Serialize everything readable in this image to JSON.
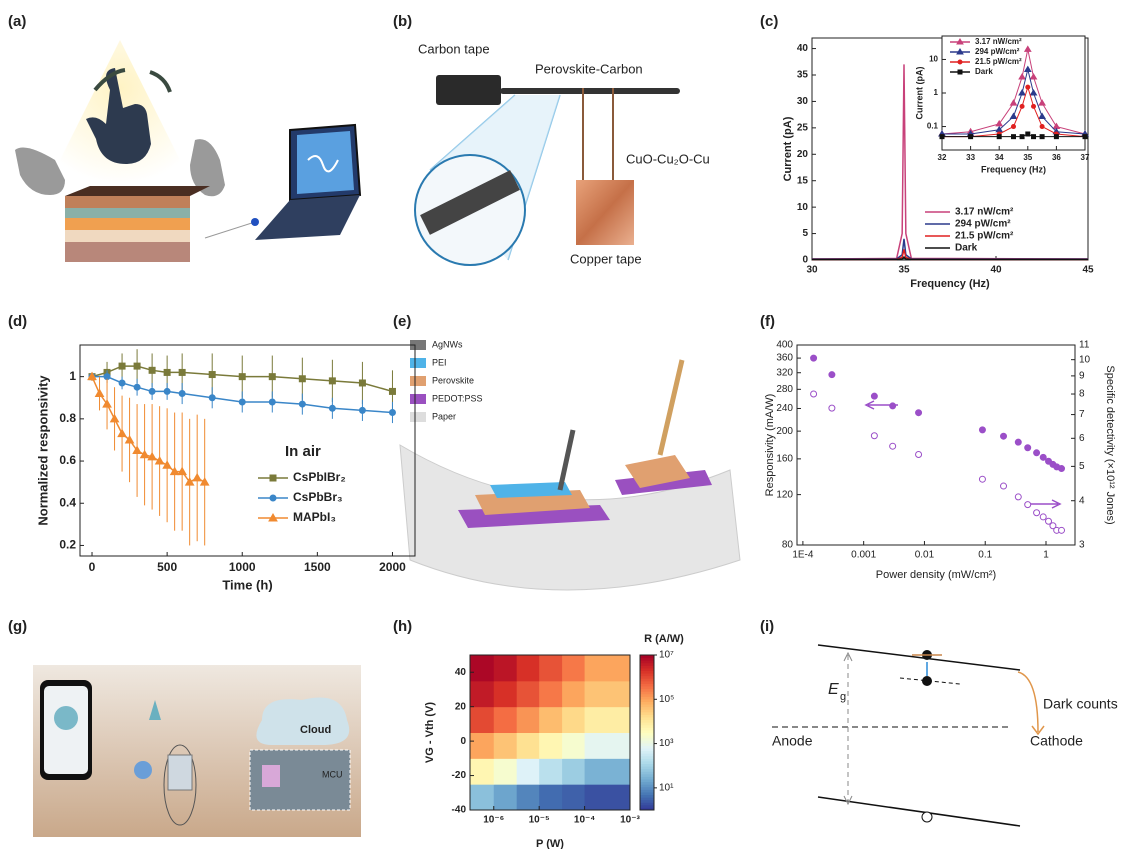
{
  "panel_labels": [
    "(a)",
    "(b)",
    "(c)",
    "(d)",
    "(e)",
    "(f)",
    "(g)",
    "(h)",
    "(i)"
  ],
  "b": [
    "Carbon tape",
    "Perovskite-Carbon",
    "CuO-Cu₂O-Cu",
    "Copper tape"
  ],
  "e": [
    "AgNWs",
    "PEI",
    "Perovskite",
    "PEDOT:PSS",
    "Paper"
  ],
  "g": [
    "Cloud",
    "MCU"
  ],
  "i": [
    "E",
    "g",
    "Dark counts",
    "Anode",
    "Cathode"
  ],
  "chart_data": [
    {
      "type": "line",
      "x_label": "Frequency (Hz)",
      "y_label": "Current (pA)",
      "xlim": [
        30,
        45
      ],
      "xticks": [
        30,
        35,
        40,
        45
      ],
      "ylim": [
        0,
        42
      ],
      "yticks": [
        0,
        5,
        10,
        15,
        20,
        25,
        30,
        35,
        40
      ],
      "x": [
        30,
        34.6,
        34.9,
        35,
        35.1,
        35.4,
        45
      ],
      "series": [
        {
          "name": "3.17 nW/cm²",
          "color": "#c8417a",
          "values": [
            0.2,
            0.3,
            5,
            37,
            5,
            0.3,
            0.2
          ]
        },
        {
          "name": "294 pW/cm²",
          "color": "#2b3a8c",
          "values": [
            0.2,
            0.2,
            1,
            4,
            1,
            0.2,
            0.2
          ]
        },
        {
          "name": "21.5 pW/cm²",
          "color": "#e02020",
          "values": [
            0.1,
            0.1,
            0.5,
            2,
            0.5,
            0.1,
            0.1
          ]
        },
        {
          "name": "Dark",
          "color": "#111111",
          "values": [
            0.1,
            0.1,
            0.2,
            0.5,
            0.2,
            0.1,
            0.1
          ]
        }
      ]
    },
    {
      "type": "line",
      "inset": true,
      "log_y": true,
      "x_label": "Frequency (Hz)",
      "y_label": "Current (pA)",
      "xlim": [
        32,
        37
      ],
      "xticks": [
        32,
        33,
        34,
        35,
        36,
        37
      ],
      "ylim": [
        0.02,
        50
      ],
      "yticks": [
        0.1,
        1,
        10
      ],
      "x": [
        32,
        33,
        34,
        34.5,
        34.8,
        35,
        35.2,
        35.5,
        36,
        37
      ],
      "series": [
        {
          "name": "3.17 nW/cm²",
          "color": "#c8417a",
          "marker": "triangle",
          "values": [
            0.06,
            0.07,
            0.12,
            0.5,
            3,
            20,
            3,
            0.5,
            0.1,
            0.06
          ]
        },
        {
          "name": "294 pW/cm²",
          "color": "#2b3a8c",
          "marker": "triangle",
          "values": [
            0.06,
            0.06,
            0.08,
            0.2,
            1,
            5,
            1,
            0.2,
            0.07,
            0.06
          ]
        },
        {
          "name": "21.5 pW/cm²",
          "color": "#e02020",
          "marker": "circle",
          "values": [
            0.05,
            0.05,
            0.06,
            0.1,
            0.4,
            1.5,
            0.4,
            0.1,
            0.06,
            0.05
          ]
        },
        {
          "name": "Dark",
          "color": "#111111",
          "marker": "square",
          "values": [
            0.05,
            0.05,
            0.05,
            0.05,
            0.05,
            0.06,
            0.05,
            0.05,
            0.05,
            0.05
          ]
        }
      ]
    },
    {
      "type": "line",
      "x_label": "Time (h)",
      "y_label": "Normalized responsivity",
      "legend_title": "In air",
      "xlim": [
        -80,
        2150
      ],
      "xticks": [
        0,
        500,
        1000,
        1500,
        2000
      ],
      "ylim": [
        0.15,
        1.15
      ],
      "yticks": [
        0.2,
        0.4,
        0.6,
        0.8,
        1.0
      ],
      "series": [
        {
          "name": "CsPbIBr₂",
          "color": "#7a7a3a",
          "marker": "square",
          "x": [
            0,
            100,
            200,
            300,
            400,
            500,
            600,
            800,
            1000,
            1200,
            1400,
            1600,
            1800,
            2000
          ],
          "values": [
            1,
            1.02,
            1.05,
            1.05,
            1.03,
            1.02,
            1.02,
            1.01,
            1.0,
            1.0,
            0.99,
            0.98,
            0.97,
            0.93
          ],
          "errors": [
            0.02,
            0.05,
            0.06,
            0.08,
            0.08,
            0.08,
            0.09,
            0.1,
            0.1,
            0.1,
            0.1,
            0.1,
            0.1,
            0.1
          ]
        },
        {
          "name": "CsPbBr₃",
          "color": "#3a86c8",
          "marker": "circle",
          "x": [
            0,
            100,
            200,
            300,
            400,
            500,
            600,
            800,
            1000,
            1200,
            1400,
            1600,
            1800,
            2000
          ],
          "values": [
            1,
            1.0,
            0.97,
            0.95,
            0.93,
            0.93,
            0.92,
            0.9,
            0.88,
            0.88,
            0.87,
            0.85,
            0.84,
            0.83
          ],
          "errors": [
            0.02,
            0.03,
            0.03,
            0.04,
            0.04,
            0.04,
            0.05,
            0.05,
            0.05,
            0.05,
            0.05,
            0.05,
            0.05,
            0.05
          ]
        },
        {
          "name": "MAPbI₃",
          "color": "#f08a30",
          "marker": "triangle",
          "x": [
            0,
            50,
            100,
            150,
            200,
            250,
            300,
            350,
            400,
            450,
            500,
            550,
            600,
            650,
            700,
            750
          ],
          "values": [
            1,
            0.92,
            0.87,
            0.8,
            0.73,
            0.7,
            0.65,
            0.63,
            0.62,
            0.6,
            0.58,
            0.55,
            0.55,
            0.5,
            0.52,
            0.5
          ],
          "errors": [
            0.02,
            0.08,
            0.12,
            0.15,
            0.18,
            0.2,
            0.22,
            0.24,
            0.25,
            0.26,
            0.27,
            0.28,
            0.28,
            0.3,
            0.3,
            0.3
          ]
        }
      ]
    },
    {
      "type": "scatter",
      "log_x": true,
      "log_y": true,
      "log_y2": true,
      "x_label": "Power density (mW/cm²)",
      "y_label": "Responsivity (mA/W)",
      "y2_label": "Specific detectivity (×10¹² Jones)",
      "xlim": [
        8e-05,
        3
      ],
      "xticks": [
        {
          "value": 0.0001,
          "label": "1E-4"
        },
        0.001,
        0.01,
        0.1,
        1
      ],
      "ylim": [
        80,
        400
      ],
      "yticks": [
        80,
        120,
        160,
        200,
        240,
        280,
        320,
        360,
        400
      ],
      "y2lim": [
        3,
        11
      ],
      "y2ticks": [
        3,
        4,
        5,
        6,
        7,
        8,
        9,
        10,
        11
      ],
      "x": [
        0.00015,
        0.0003,
        0.0015,
        0.003,
        0.008,
        0.09,
        0.2,
        0.35,
        0.5,
        0.7,
        0.9,
        1.1,
        1.3,
        1.5,
        1.8
      ],
      "series": [
        {
          "color": "#9b4fc8",
          "filled": true,
          "values": [
            360,
            315,
            265,
            245,
            232,
            202,
            192,
            183,
            175,
            168,
            162,
            157,
            153,
            150,
            148
          ]
        },
        {
          "color": "#9b4fc8",
          "filled": false,
          "axis": "y2",
          "values": [
            8.0,
            7.3,
            6.1,
            5.7,
            5.4,
            4.6,
            4.4,
            4.1,
            3.9,
            3.7,
            3.6,
            3.5,
            3.4,
            3.3,
            3.3
          ]
        }
      ]
    },
    {
      "type": "heatmap",
      "log_x": true,
      "x_label": "P (W)",
      "y_label": "VG - Vth (V)",
      "colorbar_label": "R (A/W)",
      "xlim": [
        3e-07,
        0.001
      ],
      "xticks": [
        {
          "value": 1e-06,
          "label": "10⁻⁶"
        },
        {
          "value": 1e-05,
          "label": "10⁻⁵"
        },
        {
          "value": 0.0001,
          "label": "10⁻⁴"
        },
        {
          "value": 0.001,
          "label": "10⁻³"
        }
      ],
      "ylim": [
        -40,
        50
      ],
      "yticks": [
        -40,
        -20,
        0,
        20,
        40
      ],
      "xbins": [
        3e-07,
        1e-06,
        3.2e-06,
        1e-05,
        3.2e-05,
        0.0001,
        0.001
      ],
      "ybins": [
        -40,
        -25,
        -10,
        5,
        20,
        35,
        50
      ],
      "z": [
        [
          50,
          20,
          8,
          4,
          3,
          2
        ],
        [
          5000.0,
          2000.0,
          600,
          200,
          80,
          30
        ],
        [
          100000.0,
          40000.0,
          15000.0,
          5000.0,
          2000.0,
          800
        ],
        [
          1000000.0,
          400000.0,
          150000.0,
          50000.0,
          20000.0,
          8000.0
        ],
        [
          4000000.0,
          2000000.0,
          800000.0,
          300000.0,
          100000.0,
          40000.0
        ],
        [
          8000000.0,
          5000000.0,
          2000000.0,
          800000.0,
          300000.0,
          100000.0
        ]
      ],
      "clim": [
        1,
        10000000.0
      ],
      "cticks": [
        {
          "value": 10,
          "label": "10¹"
        },
        {
          "value": 1000,
          "label": "10³"
        },
        {
          "value": 100000.0,
          "label": "10⁵"
        },
        {
          "value": 10000000.0,
          "label": "10⁷"
        }
      ],
      "colormap": [
        "#313695",
        "#4575b4",
        "#74add1",
        "#abd9e9",
        "#e0f3f8",
        "#ffffbf",
        "#fee090",
        "#fdae61",
        "#f46d43",
        "#d73027",
        "#a50026"
      ]
    }
  ]
}
